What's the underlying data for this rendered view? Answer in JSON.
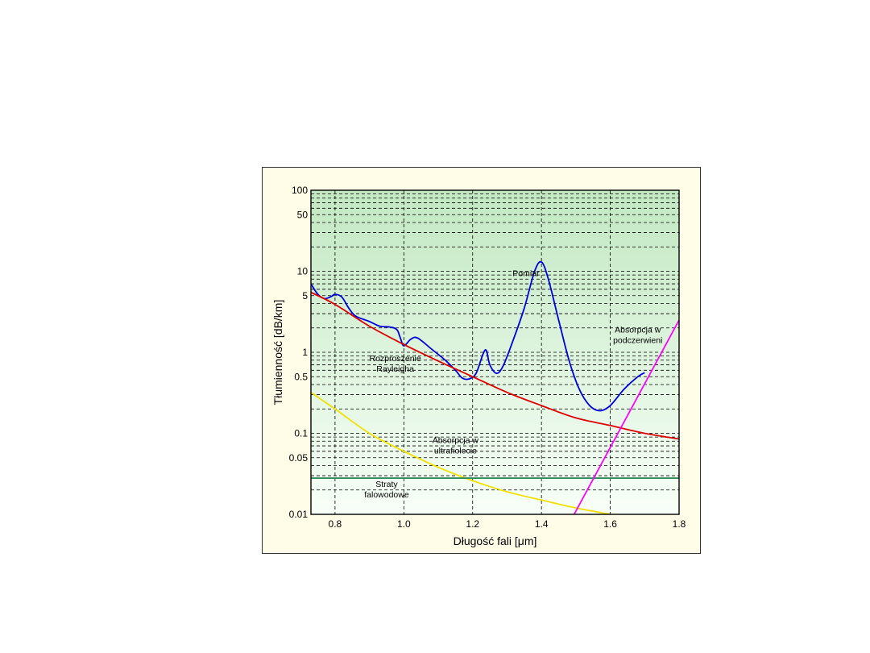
{
  "chart_data": {
    "type": "line",
    "xlabel": "Długość fali [μm]",
    "ylabel": "Tłumienność [dB/km]",
    "xlim": [
      0.73,
      1.8
    ],
    "ylim": [
      0.01,
      100
    ],
    "y_scale": "log",
    "grid": true,
    "x_ticks": [
      0.8,
      1.0,
      1.2,
      1.4,
      1.6,
      1.8
    ],
    "x_tick_labels": [
      "0.8",
      "1.0",
      "1.2",
      "1.4",
      "1.6",
      "1.8"
    ],
    "y_ticks": [
      0.01,
      0.05,
      0.1,
      0.5,
      1,
      5,
      10,
      50,
      100
    ],
    "y_tick_labels": [
      "0.01",
      "0.05",
      "0.1",
      "0.5",
      "1",
      "5",
      "10",
      "50",
      "100"
    ],
    "background_gradient": [
      "#c2e8c2",
      "#f8fff8"
    ],
    "series": [
      {
        "color": "#0000dd",
        "points": [
          [
            0.73,
            7.0
          ],
          [
            0.75,
            5.2
          ],
          [
            0.77,
            4.6
          ],
          [
            0.79,
            4.9
          ],
          [
            0.8,
            5.2
          ],
          [
            0.82,
            4.8
          ],
          [
            0.84,
            3.5
          ],
          [
            0.86,
            2.8
          ],
          [
            0.9,
            2.4
          ],
          [
            0.93,
            2.1
          ],
          [
            0.96,
            2.05
          ],
          [
            0.98,
            1.9
          ],
          [
            0.99,
            1.5
          ],
          [
            1.0,
            1.2
          ],
          [
            1.02,
            1.45
          ],
          [
            1.04,
            1.5
          ],
          [
            1.08,
            1.1
          ],
          [
            1.12,
            0.8
          ],
          [
            1.15,
            0.6
          ],
          [
            1.17,
            0.48
          ],
          [
            1.19,
            0.47
          ],
          [
            1.21,
            0.55
          ],
          [
            1.23,
            0.95
          ],
          [
            1.24,
            1.05
          ],
          [
            1.25,
            0.7
          ],
          [
            1.27,
            0.55
          ],
          [
            1.29,
            0.7
          ],
          [
            1.32,
            1.5
          ],
          [
            1.35,
            3.5
          ],
          [
            1.38,
            10.0
          ],
          [
            1.4,
            13.0
          ],
          [
            1.42,
            8.0
          ],
          [
            1.45,
            2.5
          ],
          [
            1.48,
            0.8
          ],
          [
            1.51,
            0.35
          ],
          [
            1.54,
            0.22
          ],
          [
            1.57,
            0.19
          ],
          [
            1.6,
            0.22
          ],
          [
            1.64,
            0.35
          ],
          [
            1.68,
            0.5
          ],
          [
            1.7,
            0.56
          ]
        ]
      },
      {
        "color": "#dd0000",
        "points": [
          [
            0.73,
            5.5
          ],
          [
            0.8,
            3.9
          ],
          [
            0.9,
            2.1
          ],
          [
            1.0,
            1.25
          ],
          [
            1.1,
            0.78
          ],
          [
            1.2,
            0.5
          ],
          [
            1.3,
            0.32
          ],
          [
            1.4,
            0.22
          ],
          [
            1.5,
            0.155
          ],
          [
            1.6,
            0.125
          ],
          [
            1.7,
            0.1
          ],
          [
            1.8,
            0.085
          ]
        ]
      },
      {
        "color": "#f0e000",
        "points": [
          [
            0.73,
            0.32
          ],
          [
            0.8,
            0.2
          ],
          [
            0.9,
            0.1
          ],
          [
            1.0,
            0.06
          ],
          [
            1.1,
            0.038
          ],
          [
            1.2,
            0.026
          ],
          [
            1.3,
            0.019
          ],
          [
            1.4,
            0.015
          ],
          [
            1.5,
            0.012
          ],
          [
            1.6,
            0.01
          ]
        ]
      },
      {
        "color": "#2e8b57",
        "points": [
          [
            0.73,
            0.028
          ],
          [
            1.8,
            0.028
          ]
        ]
      },
      {
        "color": "#ff00ff",
        "points": [
          [
            1.495,
            0.01
          ],
          [
            1.8,
            2.5
          ]
        ]
      }
    ],
    "annotations": [
      {
        "lines": [
          "Pomiar"
        ],
        "x": 1.355,
        "y": 8.7
      },
      {
        "lines": [
          "Absorpcja w",
          "podczerwieni"
        ],
        "x": 1.68,
        "y": 1.75
      },
      {
        "lines": [
          "Rozproszenie",
          "Rayleigha"
        ],
        "x": 0.975,
        "y": 0.78
      },
      {
        "lines": [
          "Absorpcja w",
          "ultrafiolecie"
        ],
        "x": 1.15,
        "y": 0.076
      },
      {
        "lines": [
          "Straty",
          "falowodowe"
        ],
        "x": 0.95,
        "y": 0.0218
      }
    ]
  }
}
